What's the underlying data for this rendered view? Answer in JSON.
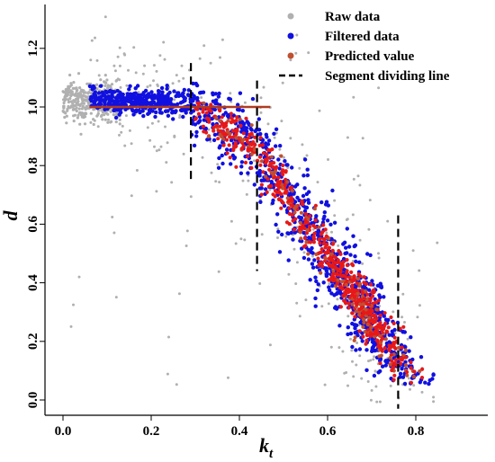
{
  "chart_data": {
    "type": "scatter",
    "xlabel": "k",
    "xlabel_sub": "t",
    "ylabel": "d",
    "xlim": [
      -0.05,
      0.93
    ],
    "ylim": [
      -0.05,
      1.35
    ],
    "xticks": [
      "0.0",
      "0.2",
      "0.4",
      "0.6",
      "0.8"
    ],
    "yticks": [
      "0.0",
      "0.2",
      "0.4",
      "0.6",
      "0.8",
      "1.0",
      "1.2"
    ],
    "grid": false,
    "legend_position": "top-right",
    "series": [
      {
        "name": "Raw data",
        "color": "#b0b0b0",
        "marker": "point"
      },
      {
        "name": "Filtered data",
        "color": "#1010e0",
        "marker": "point"
      },
      {
        "name": "Predicted value",
        "color": "#c05030",
        "marker": "point"
      },
      {
        "name": "Segment dividing line",
        "color": "#000000",
        "marker": "dashed-line"
      }
    ],
    "segment_lines": [
      {
        "x": 0.29,
        "y_range": [
          0.75,
          1.15
        ]
      },
      {
        "x": 0.44,
        "y_range": [
          0.44,
          1.09
        ]
      },
      {
        "x": 0.76,
        "y_range": [
          -0.03,
          0.63
        ]
      }
    ],
    "predicted_flat_segment": {
      "x_range": [
        0.06,
        0.47
      ],
      "y": 1.0
    },
    "data_shape": [
      {
        "x": 0.06,
        "y": 1.03
      },
      {
        "x": 0.29,
        "y": 1.01
      },
      {
        "x": 0.44,
        "y": 0.85
      },
      {
        "x": 0.55,
        "y": 0.6
      },
      {
        "x": 0.65,
        "y": 0.38
      },
      {
        "x": 0.76,
        "y": 0.15
      }
    ]
  }
}
